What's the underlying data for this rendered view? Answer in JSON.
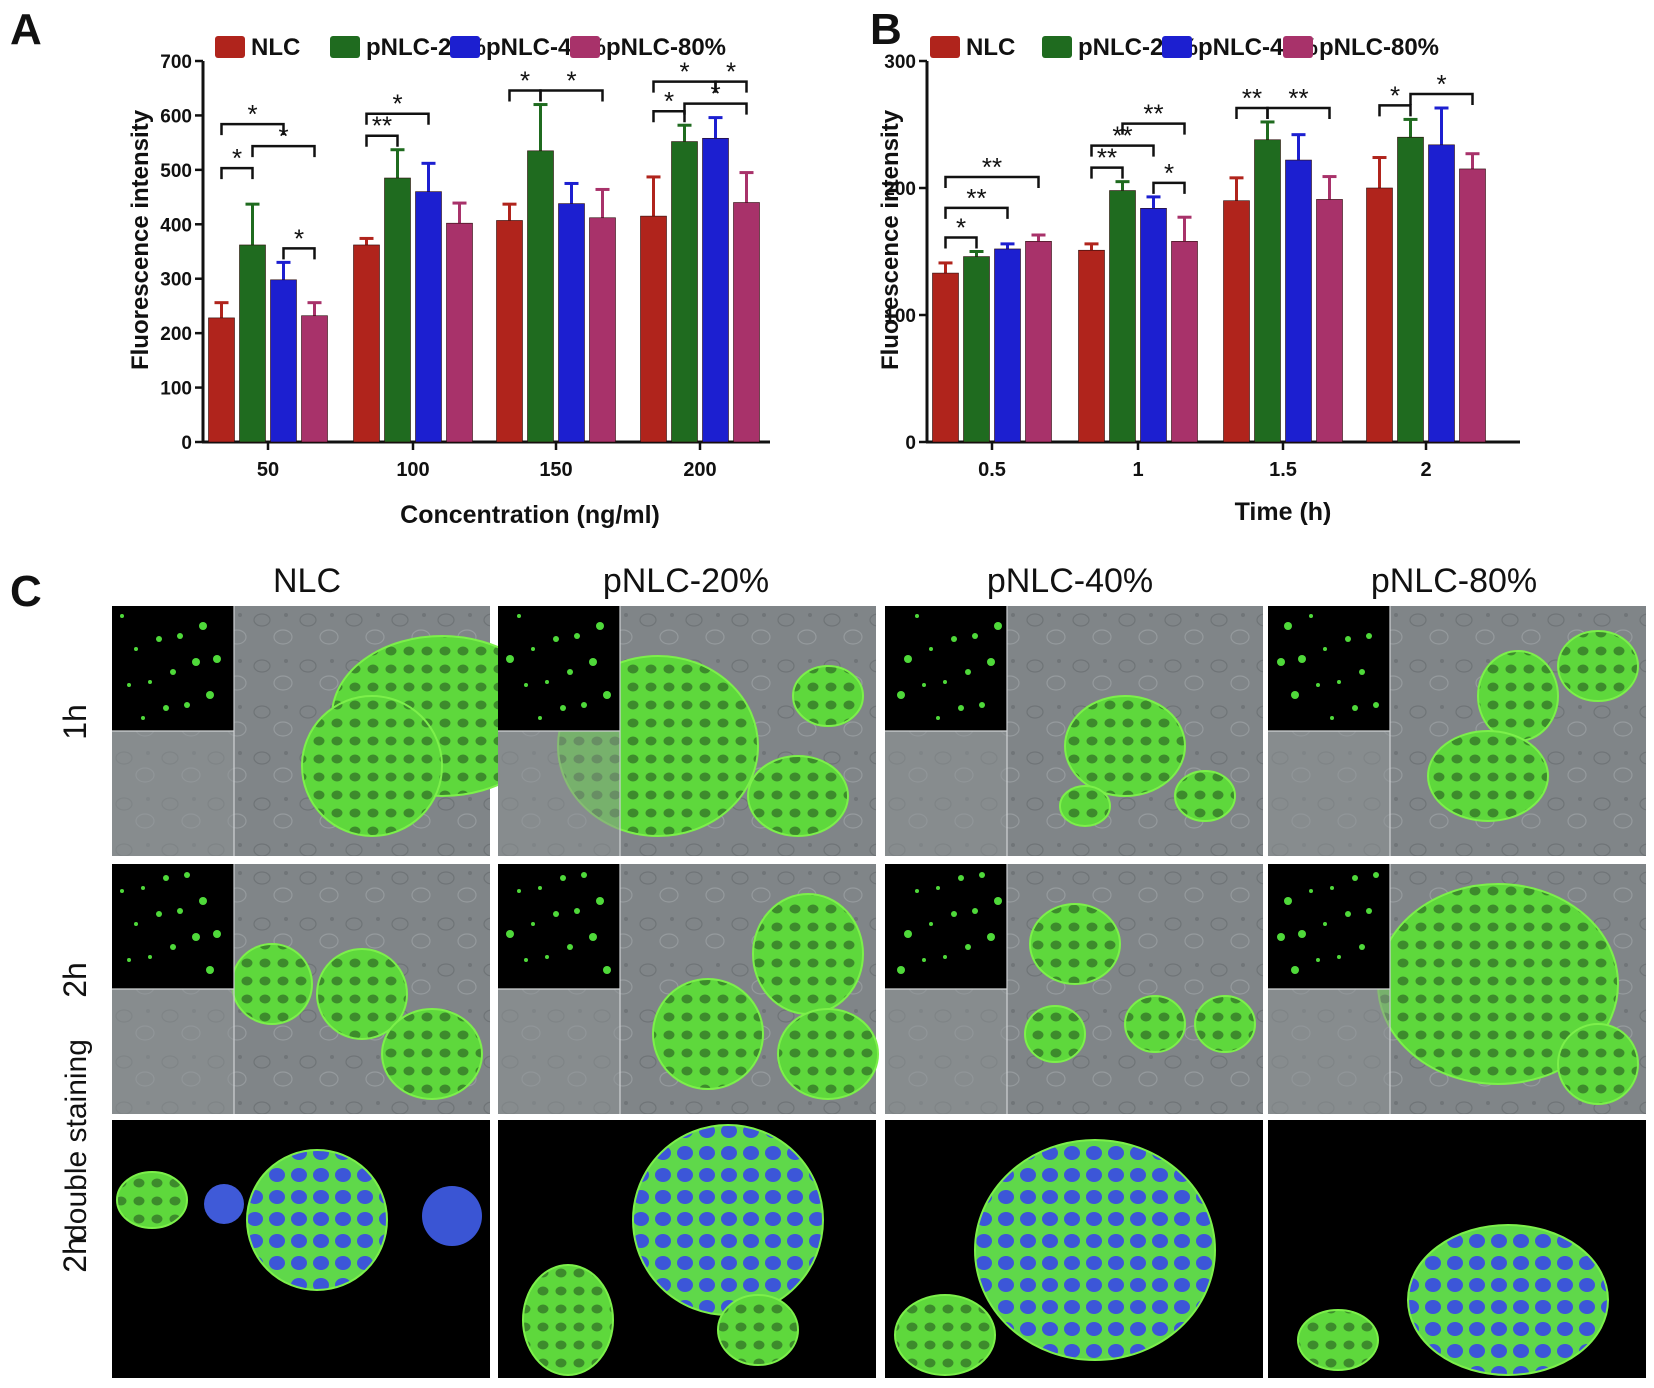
{
  "panel_labels": {
    "a": "A",
    "b": "B",
    "c": "C"
  },
  "colors": {
    "NLC": "#b0241c",
    "pNLC-20%": "#1f6b1f",
    "pNLC-40%": "#1c1fd0",
    "pNLC-80%": "#a8326a"
  },
  "chart_data": [
    {
      "panel": "A",
      "type": "bar",
      "xlabel": "Concentration (ng/ml)",
      "ylabel": "Fluorescence intensity",
      "ylim": [
        0,
        700
      ],
      "yticks": [
        0,
        100,
        200,
        300,
        400,
        500,
        600,
        700
      ],
      "categories": [
        "50",
        "100",
        "150",
        "200"
      ],
      "legend_position": "top",
      "series": [
        {
          "name": "NLC",
          "values": [
            228,
            362,
            407,
            415
          ],
          "errors": [
            28,
            12,
            30,
            72
          ]
        },
        {
          "name": "pNLC-20%",
          "values": [
            362,
            485,
            535,
            552
          ],
          "errors": [
            75,
            52,
            85,
            30
          ]
        },
        {
          "name": "pNLC-40%",
          "values": [
            298,
            460,
            438,
            558
          ],
          "errors": [
            32,
            52,
            37,
            38
          ]
        },
        {
          "name": "pNLC-80%",
          "values": [
            232,
            402,
            412,
            440
          ],
          "errors": [
            24,
            37,
            52,
            55
          ]
        }
      ],
      "significance": [
        {
          "cat": 0,
          "from": 0,
          "to": 2,
          "label": "*",
          "level": 3
        },
        {
          "cat": 0,
          "from": 0,
          "to": 1,
          "label": "*",
          "level": 1
        },
        {
          "cat": 0,
          "from": 1,
          "to": 3,
          "label": "*",
          "level": 2
        },
        {
          "cat": 0,
          "from": 2,
          "to": 3,
          "label": "*",
          "level": 0
        },
        {
          "cat": 1,
          "from": 0,
          "to": 2,
          "label": "*",
          "level": 1
        },
        {
          "cat": 1,
          "from": 0,
          "to": 1,
          "label": "**",
          "level": 0
        },
        {
          "cat": 2,
          "from": 0,
          "to": 1,
          "label": "*",
          "level": 0
        },
        {
          "cat": 2,
          "from": 1,
          "to": 3,
          "label": "*",
          "level": 0
        },
        {
          "cat": 3,
          "from": 0,
          "to": 2,
          "label": "*",
          "level": 1
        },
        {
          "cat": 3,
          "from": 0,
          "to": 1,
          "label": "*",
          "level": 0
        },
        {
          "cat": 3,
          "from": 1,
          "to": 3,
          "label": "*",
          "level": 0
        },
        {
          "cat": 3,
          "from": 2,
          "to": 3,
          "label": "*",
          "level": 1
        }
      ]
    },
    {
      "panel": "B",
      "type": "bar",
      "xlabel": "Time (h)",
      "ylabel": "Fluorescence intensity",
      "ylim": [
        0,
        300
      ],
      "yticks": [
        0,
        100,
        200,
        300
      ],
      "categories": [
        "0.5",
        "1",
        "1.5",
        "2"
      ],
      "legend_position": "top",
      "series": [
        {
          "name": "NLC",
          "values": [
            133,
            151,
            190,
            200
          ],
          "errors": [
            8,
            5,
            18,
            24
          ]
        },
        {
          "name": "pNLC-20%",
          "values": [
            146,
            198,
            238,
            240
          ],
          "errors": [
            4,
            7,
            14,
            14
          ]
        },
        {
          "name": "pNLC-40%",
          "values": [
            152,
            184,
            222,
            234
          ],
          "errors": [
            4,
            9,
            20,
            29
          ]
        },
        {
          "name": "pNLC-80%",
          "values": [
            158,
            158,
            191,
            215
          ],
          "errors": [
            5,
            19,
            18,
            12
          ]
        }
      ],
      "significance": [
        {
          "cat": 0,
          "from": 0,
          "to": 1,
          "label": "*",
          "level": 0
        },
        {
          "cat": 0,
          "from": 0,
          "to": 2,
          "label": "**",
          "level": 1
        },
        {
          "cat": 0,
          "from": 0,
          "to": 3,
          "label": "**",
          "level": 2
        },
        {
          "cat": 1,
          "from": 0,
          "to": 1,
          "label": "**",
          "level": 0
        },
        {
          "cat": 1,
          "from": 0,
          "to": 2,
          "label": "**",
          "level": 1
        },
        {
          "cat": 1,
          "from": 2,
          "to": 3,
          "label": "*",
          "level": 0
        },
        {
          "cat": 1,
          "from": 1,
          "to": 3,
          "label": "**",
          "level": 2
        },
        {
          "cat": 2,
          "from": 0,
          "to": 1,
          "label": "**",
          "level": 0
        },
        {
          "cat": 2,
          "from": 1,
          "to": 3,
          "label": "**",
          "level": 0
        },
        {
          "cat": 3,
          "from": 0,
          "to": 1,
          "label": "*",
          "level": 0
        },
        {
          "cat": 3,
          "from": 1,
          "to": 3,
          "label": "*",
          "level": 0
        }
      ]
    }
  ],
  "micrographs": {
    "columns": [
      "NLC",
      "pNLC-20%",
      "pNLC-40%",
      "pNLC-80%"
    ],
    "rows": [
      "1h",
      "2h",
      "2h"
    ],
    "row_sublabel": "double staining"
  }
}
